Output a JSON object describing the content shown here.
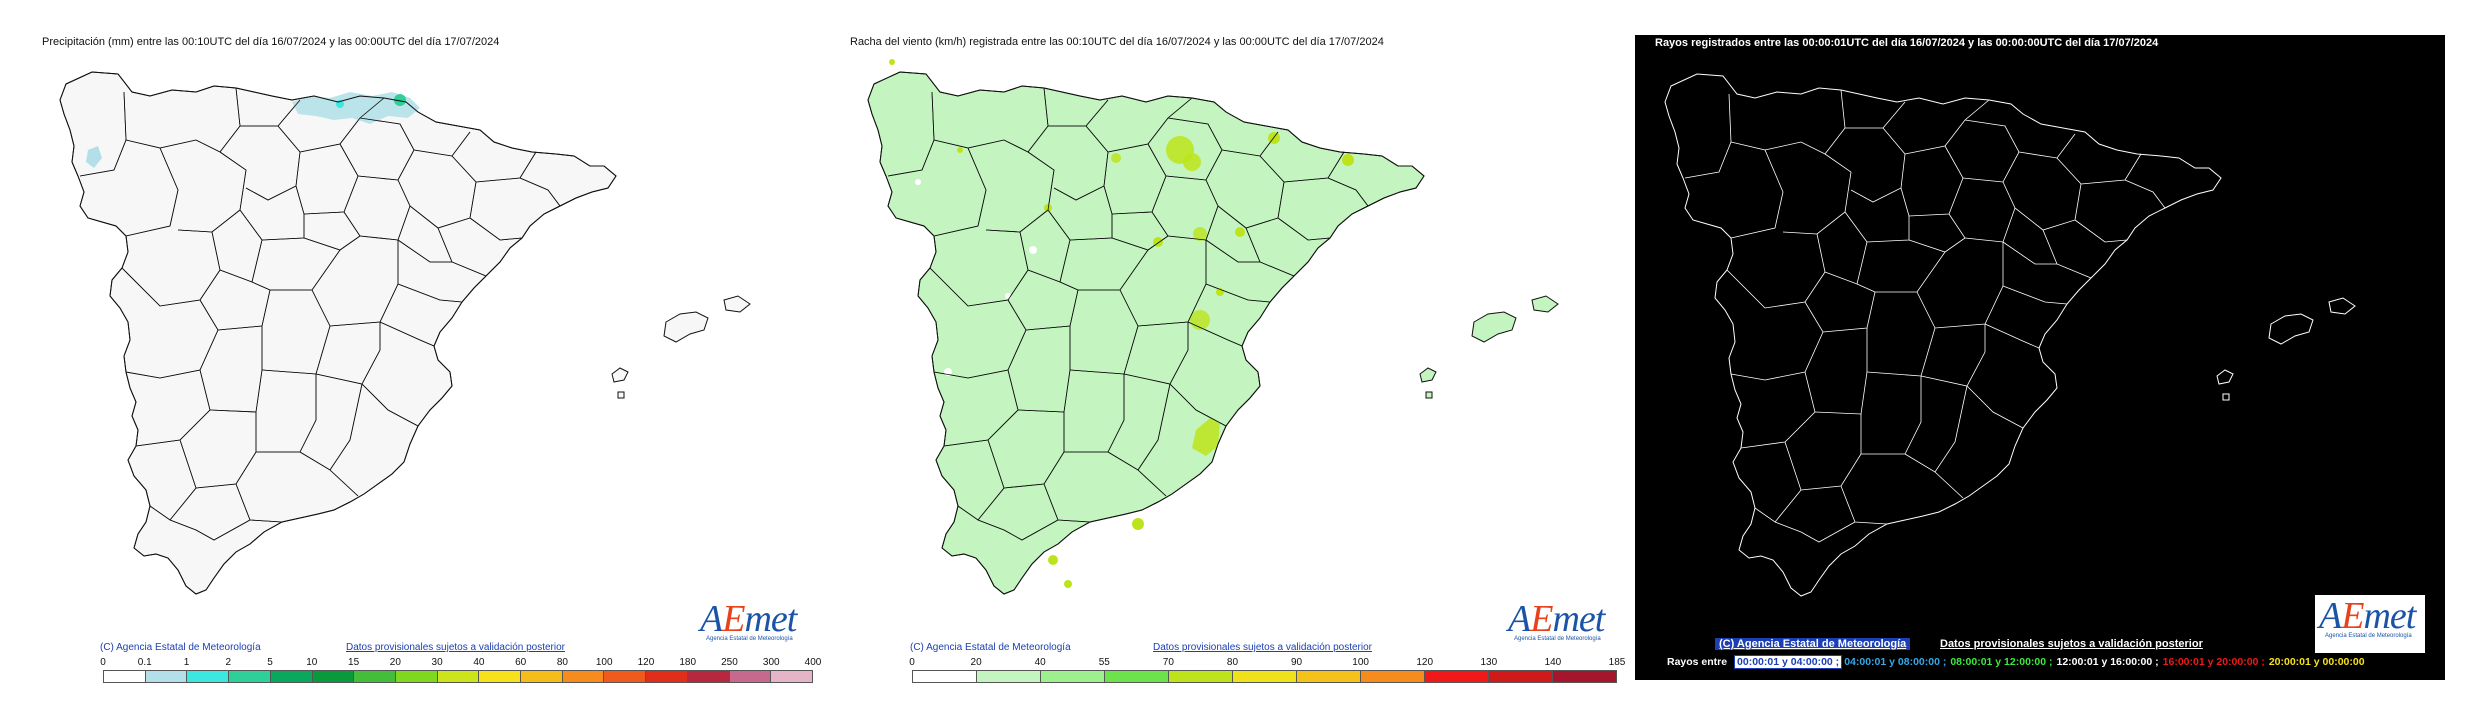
{
  "panels": [
    {
      "title": "Precipitación (mm) entre las 00:10UTC del día 16/07/2024 y las 00:00UTC del día 17/07/2024",
      "copyright": "(C) Agencia Estatal de Meteorología",
      "disclaimer": "Datos provisionales sujetos a validación posterior",
      "legend_ticks": [
        "0",
        "0.1",
        "1",
        "2",
        "5",
        "10",
        "15",
        "20",
        "30",
        "40",
        "60",
        "80",
        "100",
        "120",
        "180",
        "250",
        "300",
        "400"
      ],
      "legend_colors": [
        "#ffffff",
        "#b3e0e8",
        "#3ae8e0",
        "#2ecf98",
        "#09a85c",
        "#0a9a3e",
        "#43bd3a",
        "#80d81e",
        "#cbe51a",
        "#f5e21a",
        "#f6bc1a",
        "#f58c1d",
        "#f05a1d",
        "#e02e1a",
        "#b7273f",
        "#c56a8e",
        "#e6b4c7"
      ]
    },
    {
      "title": "Racha del viento (km/h) registrada entre las 00:10UTC del día 16/07/2024 y las 00:00UTC del día 17/07/2024",
      "copyright": "(C) Agencia Estatal de Meteorología",
      "disclaimer": "Datos provisionales sujetos a validación posterior",
      "legend_ticks": [
        "0",
        "20",
        "40",
        "55",
        "70",
        "80",
        "90",
        "100",
        "120",
        "130",
        "140",
        "185"
      ],
      "legend_colors": [
        "#ffffff",
        "#c4f5c0",
        "#9eef8e",
        "#6ce34a",
        "#bde41a",
        "#f0e21a",
        "#f5c21a",
        "#f58c1d",
        "#f01818",
        "#d01a1a",
        "#a5152b"
      ]
    },
    {
      "title": "Rayos registrados entre las 00:00:01UTC del día 16/07/2024 y las 00:00:00UTC del día 17/07/2024",
      "copyright": "(C) Agencia Estatal de Meteorología",
      "disclaimer": "Datos provisionales sujetos a validación posterior",
      "rayos_label": "Rayos entre",
      "rayos_ranges": [
        {
          "text": "00:00:01 y 04:00:00",
          "color": "#1c3fb3"
        },
        {
          "text": "04:00:01 y 08:00:00",
          "color": "#36a8e8"
        },
        {
          "text": "08:00:01 y 12:00:00",
          "color": "#3ee83e"
        },
        {
          "text": "12:00:01 y 16:00:00",
          "color": "#ffffff"
        },
        {
          "text": "16:00:01 y 20:00:00",
          "color": "#f01818"
        },
        {
          "text": "20:00:01 y 00:00:00",
          "color": "#f5e21a"
        }
      ]
    }
  ],
  "logo": {
    "a": "A",
    "e": "E",
    "met": "met",
    "sub": "Agencia Estatal de Meteorología"
  },
  "colors": {
    "map_fill_precip": "#f7f7f7",
    "map_fill_wind": "#c4f5c0",
    "map_fill_lightning": "#000000",
    "outline_dark": "#111111",
    "outline_light": "#ffffff"
  }
}
